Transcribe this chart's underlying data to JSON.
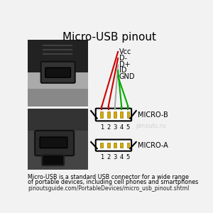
{
  "title": "Micro-USB pinout",
  "title_fontsize": 11,
  "bg_color": "#f2f2f2",
  "pin_labels_b": [
    "Vcc",
    "D-",
    "D+",
    "ID",
    "GND"
  ],
  "pin_line_colors": [
    "#cc0000",
    "#cc0000",
    "#aaaaaa",
    "#00aa00",
    "#00aa00"
  ],
  "pin_numbers": [
    "1",
    "2",
    "3",
    "4",
    "5"
  ],
  "micro_b_label": "MICRO-B",
  "micro_a_label": "MICRO-A",
  "watermark": "pinouts.ru",
  "description_line1": "Micro-USB is a standard USB connector for a wide range",
  "description_line2": "of portable devices, including cell phones and smartphones",
  "url": "pinoutsguide.com/PortableDevices/micro_usb_pinout.shtml",
  "connector_body_color": "#ffffff",
  "connector_border_color": "#000000",
  "pin_gold_color": "#d4aa00",
  "photo_bg1": "#999999",
  "photo_bg2": "#555555"
}
